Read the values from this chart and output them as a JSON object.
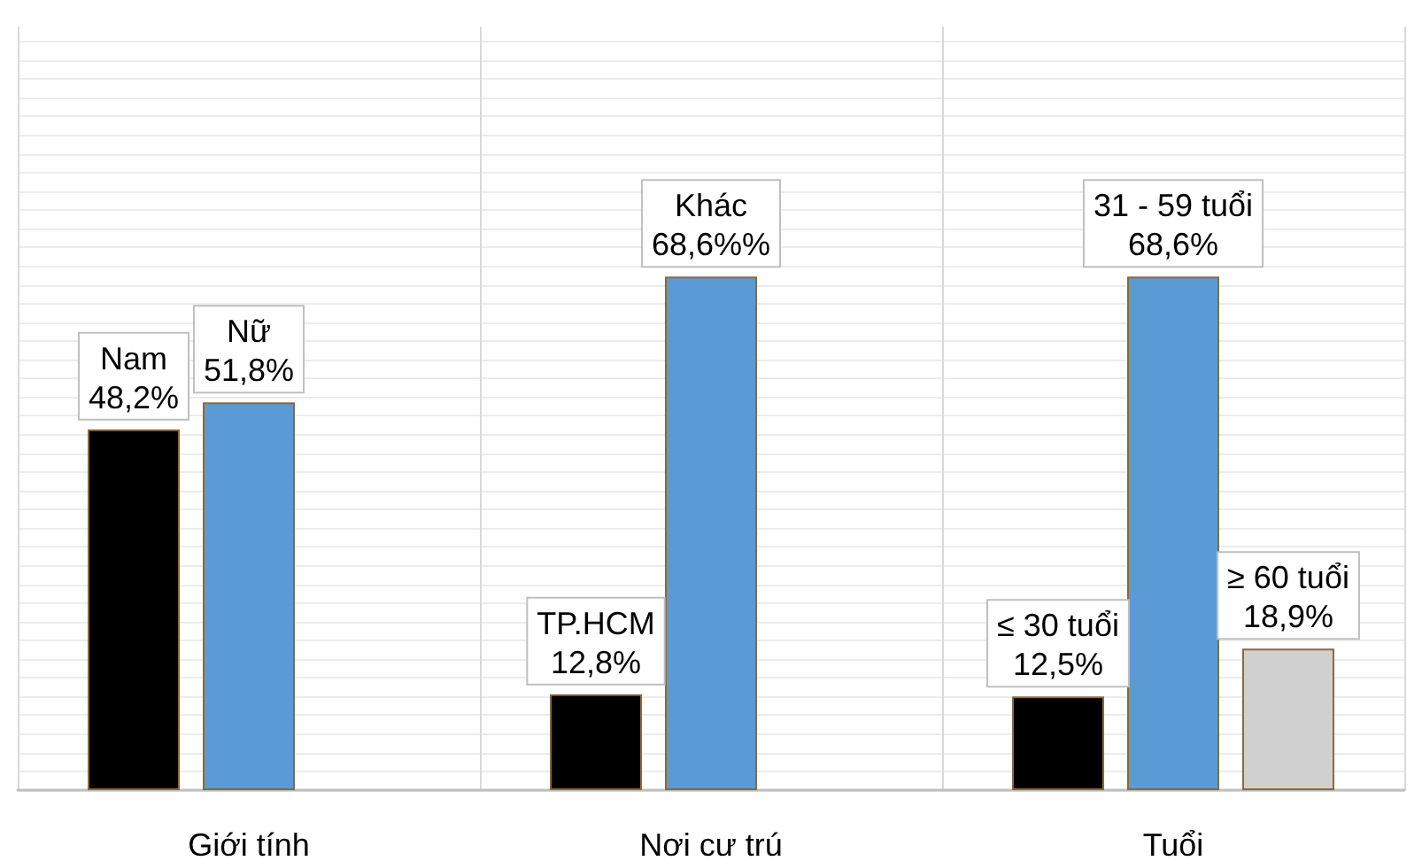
{
  "chart_data": {
    "type": "bar",
    "categories": [
      "Giới tính",
      "Nơi cư trú",
      "Tuổi"
    ],
    "series": [
      {
        "color": "#000000",
        "values": [
          48.2,
          12.8,
          12.5
        ],
        "value_labels": [
          "Nam\n48,2%",
          "TP.HCM\n12,8%",
          "≤ 30 tuổi\n12,5%"
        ]
      },
      {
        "color": "#5b9bd5",
        "values": [
          51.8,
          68.6,
          68.6
        ],
        "value_labels": [
          "Nữ\n51,8%",
          "Khác\n68,6%%",
          "31 - 59 tuổi\n68,6%"
        ]
      },
      {
        "color": "#d0d0d0",
        "values": [
          null,
          null,
          18.9
        ],
        "value_labels": [
          null,
          null,
          "≥ 60 tuổi\n18,9%"
        ]
      }
    ],
    "ylim": [
      0,
      102
    ],
    "yticks": [
      {
        "value": 0,
        "label": null
      },
      {
        "value": 2.5,
        "label": null
      },
      {
        "value": 5,
        "label": null
      },
      {
        "value": 7.5,
        "label": null
      },
      {
        "value": 10,
        "label": null
      },
      {
        "value": 12.5,
        "label": null
      },
      {
        "value": 15,
        "label": null
      },
      {
        "value": 17.5,
        "label": null
      },
      {
        "value": 20,
        "label": null
      },
      {
        "value": 22.5,
        "label": null
      },
      {
        "value": 25,
        "label": null
      },
      {
        "value": 27.5,
        "label": null
      },
      {
        "value": 30,
        "label": null
      },
      {
        "value": 32.5,
        "label": null
      },
      {
        "value": 35,
        "label": null
      },
      {
        "value": 37.5,
        "label": null
      },
      {
        "value": 40,
        "label": null
      },
      {
        "value": 42.5,
        "label": null
      },
      {
        "value": 45,
        "label": null
      },
      {
        "value": 47.5,
        "label": null
      },
      {
        "value": 50,
        "label": null
      },
      {
        "value": 52.5,
        "label": null
      },
      {
        "value": 55,
        "label": null
      },
      {
        "value": 57.5,
        "label": null
      },
      {
        "value": 60,
        "label": null
      },
      {
        "value": 62.5,
        "label": null
      },
      {
        "value": 65,
        "label": null
      },
      {
        "value": 67.5,
        "label": null
      },
      {
        "value": 70,
        "label": null
      },
      {
        "value": 72.5,
        "label": null
      },
      {
        "value": 75,
        "label": null
      },
      {
        "value": 77.5,
        "label": null
      },
      {
        "value": 80,
        "label": null
      },
      {
        "value": 82.5,
        "label": null
      },
      {
        "value": 85,
        "label": null
      },
      {
        "value": 87.5,
        "label": null
      },
      {
        "value": 90,
        "label": null
      },
      {
        "value": 92.5,
        "label": null
      },
      {
        "value": 95,
        "label": null
      },
      {
        "value": 97.5,
        "label": null
      },
      {
        "value": 100,
        "label": null
      }
    ],
    "tick_labels": "x",
    "grid": true
  }
}
